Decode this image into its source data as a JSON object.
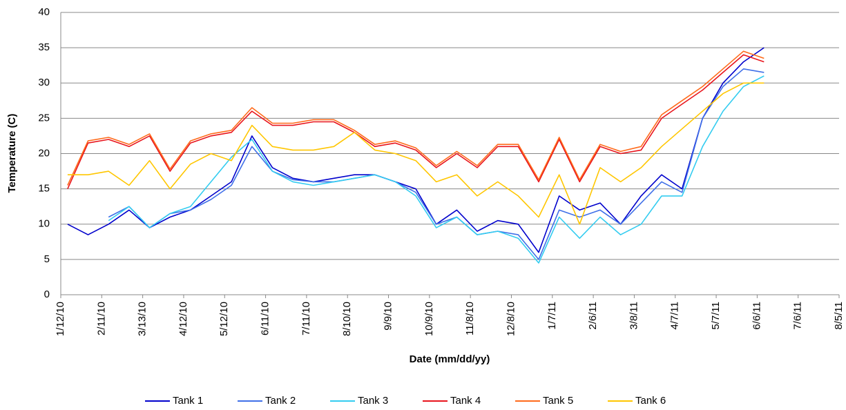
{
  "chart_data": {
    "type": "line",
    "x_label": "Date (mm/dd/yy)",
    "y_label": "Temperature (C)",
    "x": [
      "2010-01-17",
      "2010-02-01",
      "2010-02-16",
      "2010-03-03",
      "2010-03-18",
      "2010-04-02",
      "2010-04-17",
      "2010-05-02",
      "2010-05-17",
      "2010-06-01",
      "2010-06-16",
      "2010-07-01",
      "2010-07-16",
      "2010-07-31",
      "2010-08-15",
      "2010-08-30",
      "2010-09-14",
      "2010-09-29",
      "2010-10-14",
      "2010-10-29",
      "2010-11-13",
      "2010-11-28",
      "2010-12-13",
      "2010-12-28",
      "2011-01-12",
      "2011-01-27",
      "2011-02-11",
      "2011-02-26",
      "2011-03-13",
      "2011-03-28",
      "2011-04-12",
      "2011-04-27",
      "2011-05-12",
      "2011-05-27",
      "2011-06-11"
    ],
    "series": [
      {
        "name": "Tank 1",
        "color": "#0000cc",
        "values": [
          10,
          8.5,
          10,
          12,
          9.5,
          11,
          12,
          14,
          16,
          22.5,
          18,
          16.5,
          16,
          16.5,
          17,
          17,
          16,
          15,
          10,
          12,
          9,
          10.5,
          10,
          6,
          14,
          12,
          13,
          10,
          14,
          17,
          15,
          25,
          30,
          33,
          35
        ]
      },
      {
        "name": "Tank 2",
        "color": "#3f6fe8",
        "values": [
          null,
          null,
          11,
          12.5,
          9.5,
          11.5,
          12,
          13.5,
          15.5,
          21,
          17.5,
          16.3,
          16,
          16,
          16.5,
          17,
          16,
          14.5,
          10,
          11,
          8.5,
          9,
          8.5,
          5,
          12,
          11,
          12,
          10,
          13,
          16,
          14.5,
          25,
          29.5,
          32,
          31.5
        ]
      },
      {
        "name": "Tank 3",
        "color": "#33ccf0",
        "values": [
          null,
          null,
          10.5,
          12.5,
          9.5,
          11.5,
          12.5,
          16,
          19.5,
          22,
          17.5,
          16,
          15.5,
          16,
          16.5,
          17,
          16,
          14,
          9.5,
          11,
          8.5,
          9,
          8,
          4.5,
          11,
          8,
          11,
          8.5,
          10,
          14,
          14,
          21,
          26,
          29.5,
          31
        ]
      },
      {
        "name": "Tank 4",
        "color": "#e8141c",
        "values": [
          15,
          21.5,
          22,
          21,
          22.5,
          17.5,
          21.5,
          22.5,
          23,
          26,
          24,
          24,
          24.5,
          24.5,
          23,
          21,
          21.5,
          20.5,
          18,
          20,
          18,
          21,
          21,
          16,
          22,
          16,
          21,
          20,
          20.5,
          25,
          27,
          29,
          31.5,
          34,
          33
        ]
      },
      {
        "name": "Tank 5",
        "color": "#ff6a1a",
        "values": [
          15.5,
          21.8,
          22.3,
          21.3,
          22.8,
          17.8,
          21.8,
          22.8,
          23.3,
          26.5,
          24.3,
          24.3,
          24.8,
          24.8,
          23.3,
          21.3,
          21.8,
          20.8,
          18.3,
          20.3,
          18.3,
          21.3,
          21.3,
          16.3,
          22.3,
          16.3,
          21.3,
          20.3,
          21,
          25.5,
          27.5,
          29.5,
          32,
          34.5,
          33.5
        ]
      },
      {
        "name": "Tank 6",
        "color": "#ffc600",
        "values": [
          17,
          17,
          17.5,
          15.5,
          19,
          15,
          18.5,
          20,
          19,
          24,
          21,
          20.5,
          20.5,
          21,
          23,
          20.5,
          20,
          19,
          16,
          17,
          14,
          16,
          14,
          11,
          17,
          10,
          18,
          16,
          18,
          21,
          23.5,
          26,
          28.5,
          30,
          30
        ]
      }
    ],
    "xlim": [
      "2010-01-12",
      "2011-08-05"
    ],
    "xticks": [
      {
        "value": "2010-01-12",
        "label": "1/12/10"
      },
      {
        "value": "2010-02-11",
        "label": "2/11/10"
      },
      {
        "value": "2010-03-13",
        "label": "3/13/10"
      },
      {
        "value": "2010-04-12",
        "label": "4/12/10"
      },
      {
        "value": "2010-05-12",
        "label": "5/12/10"
      },
      {
        "value": "2010-06-11",
        "label": "6/11/10"
      },
      {
        "value": "2010-07-11",
        "label": "7/11/10"
      },
      {
        "value": "2010-08-10",
        "label": "8/10/10"
      },
      {
        "value": "2010-09-09",
        "label": "9/9/10"
      },
      {
        "value": "2010-10-09",
        "label": "10/9/10"
      },
      {
        "value": "2010-11-08",
        "label": "11/8/10"
      },
      {
        "value": "2010-12-08",
        "label": "12/8/10"
      },
      {
        "value": "2011-01-07",
        "label": "1/7/11"
      },
      {
        "value": "2011-02-06",
        "label": "2/6/11"
      },
      {
        "value": "2011-03-08",
        "label": "3/8/11"
      },
      {
        "value": "2011-04-07",
        "label": "4/7/11"
      },
      {
        "value": "2011-05-07",
        "label": "5/7/11"
      },
      {
        "value": "2011-06-06",
        "label": "6/6/11"
      },
      {
        "value": "2011-07-06",
        "label": "7/6/11"
      },
      {
        "value": "2011-08-05",
        "label": "8/5/11"
      }
    ],
    "ylim": [
      0,
      40
    ],
    "yticks": [
      0,
      5,
      10,
      15,
      20,
      25,
      30,
      35,
      40
    ],
    "grid": true,
    "legend": "bottom"
  }
}
